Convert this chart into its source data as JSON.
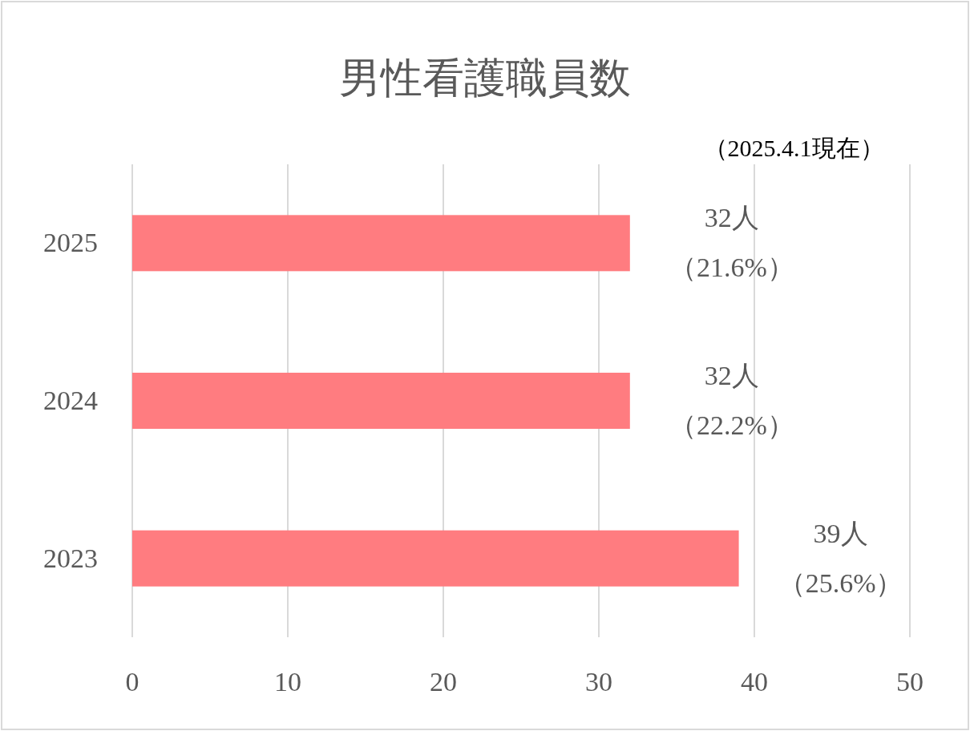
{
  "chart_data": {
    "type": "bar",
    "orientation": "horizontal",
    "title": "男性看護職員数",
    "annotations": [
      "（2025.4.1現在）"
    ],
    "categories": [
      "2025",
      "2024",
      "2023"
    ],
    "values": [
      32,
      32,
      39
    ],
    "value_labels": [
      "32人（21.6%）",
      "32人（22.2%）",
      "39人（25.6%）"
    ],
    "color": "#ff7c80",
    "xlim": [
      0,
      50
    ],
    "xticks": [
      0,
      10,
      20,
      30,
      40,
      50
    ],
    "grid": "x"
  }
}
